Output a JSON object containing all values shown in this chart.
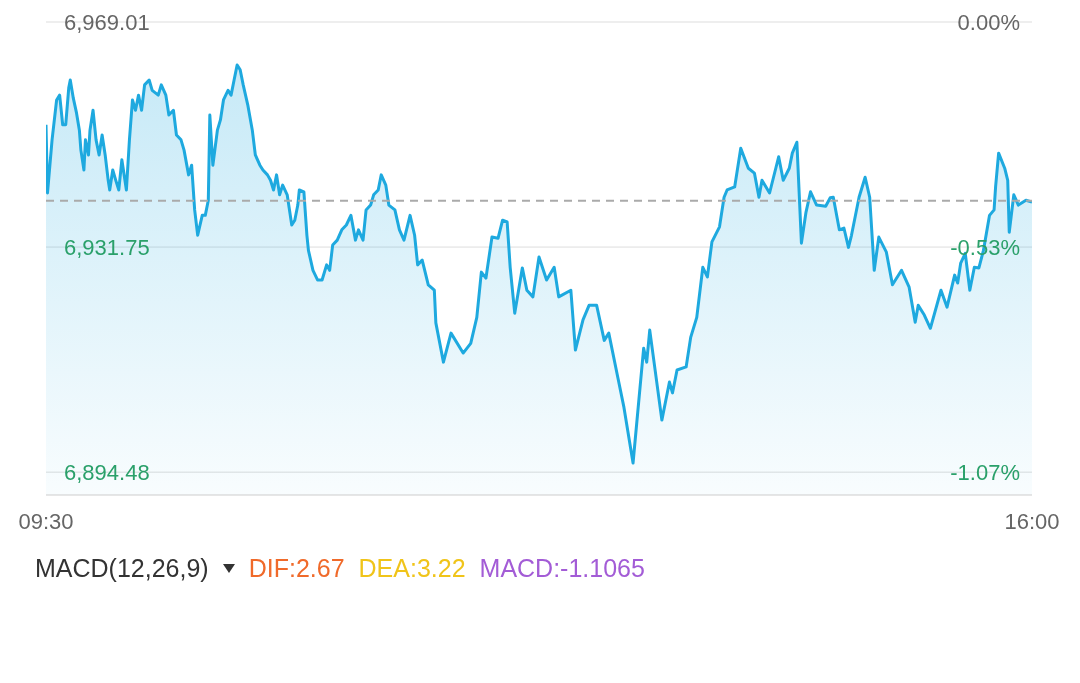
{
  "chart_data": {
    "type": "area",
    "color": "#1ea9df",
    "x": [
      9.5,
      9.51,
      9.54,
      9.57,
      9.59,
      9.61,
      9.63,
      9.65,
      9.66,
      9.68,
      9.7,
      9.72,
      9.73,
      9.75,
      9.76,
      9.78,
      9.79,
      9.81,
      9.83,
      9.85,
      9.87,
      9.89,
      9.91,
      9.92,
      9.94,
      9.96,
      9.98,
      10.0,
      10.03,
      10.05,
      10.07,
      10.09,
      10.11,
      10.13,
      10.15,
      10.18,
      10.2,
      10.24,
      10.26,
      10.29,
      10.31,
      10.34,
      10.36,
      10.39,
      10.41,
      10.44,
      10.46,
      10.48,
      10.5,
      10.53,
      10.55,
      10.57,
      10.58,
      10.6,
      10.63,
      10.65,
      10.67,
      10.7,
      10.72,
      10.74,
      10.76,
      10.78,
      10.8,
      10.83,
      10.86,
      10.88,
      10.91,
      10.93,
      10.96,
      10.98,
      11.0,
      11.02,
      11.04,
      11.06,
      11.09,
      11.12,
      11.14,
      11.16,
      11.17,
      11.2,
      11.22,
      11.23,
      11.26,
      11.29,
      11.32,
      11.35,
      11.37,
      11.39,
      11.42,
      11.45,
      11.48,
      11.51,
      11.54,
      11.56,
      11.59,
      11.61,
      11.64,
      11.66,
      11.69,
      11.71,
      11.74,
      11.76,
      11.8,
      11.83,
      11.86,
      11.9,
      11.93,
      11.95,
      11.98,
      12.02,
      12.06,
      12.07,
      12.12,
      12.17,
      12.25,
      12.3,
      12.34,
      12.37,
      12.4,
      12.44,
      12.48,
      12.51,
      12.54,
      12.56,
      12.59,
      12.64,
      12.67,
      12.71,
      12.75,
      12.8,
      12.85,
      12.88,
      12.96,
      12.99,
      13.04,
      13.08,
      13.13,
      13.18,
      13.21,
      13.27,
      13.31,
      13.37,
      13.44,
      13.46,
      13.48,
      13.56,
      13.61,
      13.63,
      13.66,
      13.72,
      13.75,
      13.79,
      13.83,
      13.86,
      13.89,
      13.94,
      13.97,
      13.99,
      14.04,
      14.08,
      14.13,
      14.17,
      14.2,
      14.22,
      14.27,
      14.33,
      14.36,
      14.4,
      14.42,
      14.45,
      14.48,
      14.51,
      14.54,
      14.58,
      14.64,
      14.67,
      14.69,
      14.73,
      14.76,
      14.79,
      14.81,
      14.86,
      14.9,
      14.93,
      14.96,
      14.99,
      15.04,
      15.08,
      15.14,
      15.19,
      15.23,
      15.25,
      15.29,
      15.33,
      15.4,
      15.44,
      15.49,
      15.51,
      15.53,
      15.56,
      15.59,
      15.62,
      15.65,
      15.68,
      15.72,
      15.75,
      15.76,
      15.78,
      15.82,
      15.84,
      15.85,
      15.88,
      15.91,
      15.96,
      16.0
    ],
    "values": [
      6952.0,
      6940.7,
      6949.5,
      6956.1,
      6956.9,
      6952.0,
      6952.0,
      6958.1,
      6959.4,
      6956.4,
      6954.1,
      6951.1,
      6947.8,
      6944.5,
      6949.5,
      6947.0,
      6951.1,
      6954.4,
      6949.5,
      6947.0,
      6950.3,
      6947.0,
      6942.8,
      6941.2,
      6944.5,
      6942.8,
      6941.2,
      6946.2,
      6941.2,
      6949.5,
      6956.1,
      6954.4,
      6956.9,
      6954.4,
      6958.6,
      6959.4,
      6957.7,
      6956.9,
      6958.6,
      6956.9,
      6953.6,
      6954.4,
      6950.3,
      6949.5,
      6947.8,
      6943.7,
      6945.3,
      6937.9,
      6933.7,
      6937.0,
      6937.0,
      6939.5,
      6953.6,
      6945.3,
      6951.1,
      6952.8,
      6956.1,
      6957.7,
      6956.9,
      6959.4,
      6961.9,
      6961.1,
      6958.6,
      6955.3,
      6951.1,
      6947.0,
      6945.3,
      6944.5,
      6943.7,
      6942.8,
      6941.2,
      6943.7,
      6940.4,
      6942.0,
      6940.4,
      6935.4,
      6936.2,
      6938.7,
      6941.2,
      6940.9,
      6933.7,
      6931.2,
      6927.9,
      6926.3,
      6926.3,
      6928.8,
      6927.9,
      6932.1,
      6932.9,
      6934.6,
      6935.4,
      6937.0,
      6932.9,
      6934.6,
      6932.9,
      6937.9,
      6938.7,
      6940.4,
      6941.2,
      6943.7,
      6942.0,
      6938.7,
      6937.9,
      6934.6,
      6932.9,
      6937.0,
      6933.7,
      6928.8,
      6929.6,
      6925.5,
      6924.6,
      6919.2,
      6912.7,
      6917.5,
      6914.2,
      6915.8,
      6920.1,
      6927.6,
      6926.6,
      6933.4,
      6933.2,
      6936.2,
      6935.9,
      6928.4,
      6920.8,
      6928.3,
      6924.6,
      6923.5,
      6930.1,
      6926.3,
      6928.4,
      6923.5,
      6924.6,
      6914.7,
      6919.7,
      6922.1,
      6922.1,
      6916.3,
      6917.5,
      6910.1,
      6905.2,
      6896.0,
      6915.0,
      6912.7,
      6918.0,
      6903.1,
      6909.4,
      6907.6,
      6911.4,
      6911.9,
      6916.8,
      6920.1,
      6928.4,
      6926.8,
      6932.6,
      6935.1,
      6940.0,
      6941.2,
      6941.7,
      6948.1,
      6944.8,
      6944.0,
      6940.0,
      6942.8,
      6940.7,
      6946.7,
      6942.8,
      6944.8,
      6947.3,
      6949.1,
      6932.4,
      6937.5,
      6940.9,
      6938.7,
      6938.5,
      6939.9,
      6940.0,
      6934.6,
      6934.9,
      6931.7,
      6933.7,
      6940.0,
      6943.3,
      6940.0,
      6927.9,
      6933.4,
      6930.9,
      6925.5,
      6927.9,
      6925.1,
      6919.3,
      6922.1,
      6920.5,
      6918.3,
      6924.6,
      6921.8,
      6927.1,
      6925.8,
      6929.1,
      6930.7,
      6924.6,
      6928.4,
      6928.3,
      6931.2,
      6937.0,
      6937.9,
      6941.7,
      6947.3,
      6944.8,
      6942.8,
      6934.2,
      6940.4,
      6938.7,
      6939.5,
      6939.2
    ],
    "xlim": [
      9.5,
      16
    ],
    "xticks": [
      {
        "value": 9.5,
        "label": "09:30"
      },
      {
        "value": 16,
        "label": "16:00"
      }
    ],
    "ylim": [
      6890.7,
      6969.01
    ],
    "yticks": [
      {
        "value": 6969.01,
        "label": "6,969.01"
      },
      {
        "value": 6931.75,
        "label": "6,931.75"
      },
      {
        "value": 6894.48,
        "label": "6,894.48"
      }
    ],
    "y2lim": [
      -1.124,
      0
    ],
    "y2ticks": [
      {
        "value": 0,
        "label": "0.00%"
      },
      {
        "value": -0.535,
        "label": "-0.53%"
      },
      {
        "value": -1.07,
        "label": "-1.07%"
      }
    ],
    "grid": "y",
    "ref_lines": [
      {
        "axis": "y",
        "value": 6939.4,
        "color": "#aaaaaa",
        "line_style": "dashed"
      }
    ],
    "annotations": [
      "MACD(12,26,9)",
      "DIF:2.67",
      "DEA:3.22",
      "MACD:-1.1065"
    ]
  }
}
